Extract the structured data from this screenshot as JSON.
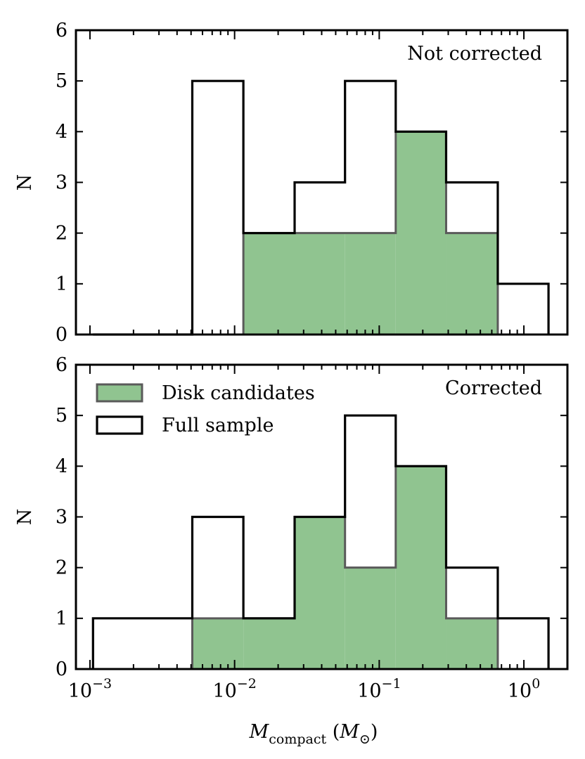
{
  "chart_data": [
    {
      "type": "histogram",
      "panel": "top",
      "annotation": "Not corrected",
      "xscale": "log",
      "xlim": [
        0.0008,
        2.0
      ],
      "ylim": [
        0,
        6
      ],
      "ylabel": "N",
      "bin_edges": [
        0.00105,
        0.0023,
        0.0051,
        0.0115,
        0.026,
        0.058,
        0.13,
        0.29,
        0.66,
        1.48
      ],
      "series": [
        {
          "name": "Full sample",
          "values": [
            0,
            0,
            5,
            2,
            3,
            5,
            4,
            3,
            1
          ],
          "style": "step",
          "color": "#000000"
        },
        {
          "name": "Disk candidates",
          "values": [
            0,
            0,
            0,
            2,
            2,
            2,
            4,
            2,
            0
          ],
          "style": "filled",
          "color": "#90c490"
        }
      ]
    },
    {
      "type": "histogram",
      "panel": "bottom",
      "annotation": "Corrected",
      "xscale": "log",
      "xlim": [
        0.0008,
        2.0
      ],
      "ylim": [
        0,
        6
      ],
      "ylabel": "N",
      "bin_edges": [
        0.00105,
        0.0023,
        0.0051,
        0.0115,
        0.026,
        0.058,
        0.13,
        0.29,
        0.66,
        1.48
      ],
      "series": [
        {
          "name": "Full sample",
          "values": [
            1,
            1,
            3,
            1,
            3,
            5,
            4,
            2,
            1
          ],
          "style": "step",
          "color": "#000000"
        },
        {
          "name": "Disk candidates",
          "values": [
            0,
            0,
            1,
            1,
            3,
            2,
            4,
            1,
            0
          ],
          "style": "filled",
          "color": "#90c490"
        }
      ],
      "legend": {
        "location": "top-left",
        "entries": [
          "Disk candidates",
          "Full sample"
        ]
      }
    }
  ],
  "yticks": [
    "0",
    "1",
    "2",
    "3",
    "4",
    "5",
    "6"
  ],
  "xticks": [
    {
      "base": "10",
      "exp": "−3",
      "value": 0.001
    },
    {
      "base": "10",
      "exp": "−2",
      "value": 0.01
    },
    {
      "base": "10",
      "exp": "−1",
      "value": 0.1
    },
    {
      "base": "10",
      "exp": "0",
      "value": 1
    }
  ],
  "xlabel": {
    "symbol": "M",
    "subscript": "compact",
    "unit_symbol": "M",
    "unit_subscript": "⊙"
  }
}
